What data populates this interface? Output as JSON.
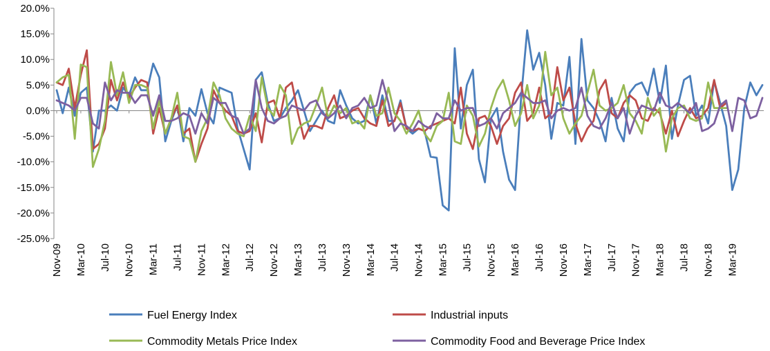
{
  "chart_data": {
    "type": "line",
    "title": "",
    "xlabel": "",
    "ylabel": "",
    "ylim": [
      -25,
      20
    ],
    "y_ticks": [
      "20.0%",
      "15.0%",
      "10.0%",
      "5.0%",
      "0.0%",
      "-5.0%",
      "-10.0%",
      "-15.0%",
      "-20.0%",
      "-25.0%"
    ],
    "y_tick_values": [
      20,
      15,
      10,
      5,
      0,
      -5,
      -10,
      -15,
      -20,
      -25
    ],
    "x_tick_labels": [
      "Nov-09",
      "Mar-10",
      "Jul-10",
      "Nov-10",
      "Mar-11",
      "Jul-11",
      "Nov-11",
      "Mar-12",
      "Jul-12",
      "Nov-12",
      "Mar-13",
      "Jul-13",
      "Nov-13",
      "Mar-14",
      "Jul-14",
      "Nov-14",
      "Mar-15",
      "Jul-15",
      "Nov-15",
      "Mar-16",
      "Jul-16",
      "Nov-16",
      "Mar-17",
      "Jul-17",
      "Nov-17",
      "Mar-18",
      "Jul-18",
      "Nov-18",
      "Mar-19"
    ],
    "grid": false,
    "legend_position": "bottom",
    "series": [
      {
        "name": "Fuel Energy Index",
        "color": "#4a7ebb",
        "values": [
          4.0,
          -0.5,
          4.5,
          -1.0,
          3.5,
          4.5,
          -8.0,
          0.0,
          0.0,
          1.0,
          0.0,
          4.5,
          3.0,
          6.5,
          4.0,
          4.0,
          9.2,
          6.5,
          -6.0,
          -2.0,
          1.0,
          -6.0,
          0.5,
          -1.0,
          4.2,
          -0.5,
          -2.5,
          4.5,
          4.0,
          3.5,
          -3.5,
          -7.5,
          -11.5,
          6.0,
          7.5,
          1.5,
          -2.0,
          -1.5,
          0.5,
          2.0,
          4.0,
          0.0,
          -4.0,
          -2.0,
          0.0,
          -2.0,
          -2.5,
          4.0,
          1.0,
          -1.5,
          -2.5,
          -2.0,
          3.0,
          -2.5,
          3.0,
          -2.0,
          -2.0,
          2.0,
          -3.5,
          -4.5,
          -3.5,
          -4.0,
          -9.0,
          -9.2,
          -18.5,
          -19.5,
          12.2,
          -3.5,
          5.0,
          8.0,
          -9.5,
          -14.0,
          -1.5,
          0.5,
          -8.0,
          -13.5,
          -15.5,
          2.5,
          15.7,
          8.0,
          11.3,
          5.0,
          -5.5,
          1.5,
          1.0,
          10.5,
          -6.5,
          14.0,
          2.0,
          0.5,
          -2.0,
          -6.0,
          2.5,
          -3.5,
          -6.0,
          3.5,
          5.0,
          5.5,
          3.0,
          8.2,
          1.5,
          8.8,
          -5.5,
          1.0,
          6.0,
          6.8,
          -1.0,
          1.0,
          -2.5,
          5.8,
          1.5,
          -3.0,
          -15.5,
          -11.5,
          0.5,
          5.5,
          3.0,
          5.0
        ]
      },
      {
        "name": "Industrial inputs",
        "color": "#be4b48",
        "values": [
          5.5,
          5.0,
          8.2,
          0.5,
          7.0,
          11.8,
          -7.5,
          -6.5,
          -3.5,
          6.0,
          2.0,
          5.5,
          2.5,
          4.5,
          6.0,
          5.5,
          -4.5,
          0.5,
          -4.5,
          -1.5,
          1.0,
          -4.5,
          -3.5,
          -10.0,
          -6.5,
          -3.5,
          4.0,
          1.5,
          0.0,
          -1.0,
          -4.0,
          -4.5,
          -4.0,
          -0.5,
          -6.2,
          1.5,
          2.0,
          -1.5,
          4.5,
          5.5,
          -0.5,
          -5.5,
          -3.0,
          -3.0,
          -3.5,
          0.5,
          3.0,
          -1.5,
          -1.0,
          0.0,
          0.5,
          -1.5,
          -2.5,
          -3.0,
          2.0,
          -3.0,
          -2.0,
          1.5,
          -3.5,
          -4.0,
          -3.5,
          -4.0,
          -3.0,
          -2.5,
          -2.0,
          -1.5,
          -2.5,
          4.5,
          -4.5,
          -7.5,
          -1.5,
          -1.0,
          -3.0,
          -6.5,
          -3.0,
          -1.5,
          3.5,
          5.5,
          -2.0,
          -0.5,
          4.5,
          -1.5,
          -0.5,
          8.5,
          2.0,
          4.5,
          -2.5,
          -6.0,
          -3.5,
          -2.0,
          4.0,
          6.0,
          -0.5,
          -1.5,
          1.5,
          3.0,
          2.0,
          -1.5,
          -2.0,
          0.5,
          -0.5,
          -4.5,
          0.0,
          -5.0,
          -2.0,
          0.5,
          -1.5,
          -1.0,
          0.5,
          6.0,
          0.5,
          1.5
        ]
      },
      {
        "name": "Commodity Metals Price Index",
        "color": "#98b954",
        "values": [
          5.5,
          6.5,
          7.0,
          -5.5,
          9.0,
          8.5,
          -11.0,
          -7.5,
          -2.0,
          9.5,
          3.0,
          7.5,
          1.5,
          5.0,
          5.0,
          4.5,
          -3.5,
          2.0,
          -4.5,
          -1.5,
          3.5,
          -5.0,
          -5.5,
          -10.0,
          -4.0,
          -1.5,
          5.5,
          3.0,
          -1.5,
          -3.5,
          -4.5,
          -5.0,
          -1.0,
          -4.0,
          6.5,
          0.5,
          -1.0,
          5.0,
          3.0,
          -6.5,
          -3.5,
          -2.5,
          -2.0,
          1.0,
          4.5,
          -1.5,
          1.0,
          -0.5,
          0.5,
          -2.5,
          -2.0,
          -3.5,
          3.0,
          -1.0,
          -0.5,
          4.5,
          -0.5,
          -2.0,
          -4.5,
          -2.5,
          0.0,
          -4.5,
          -6.0,
          -3.0,
          -2.0,
          3.5,
          -6.0,
          -6.5,
          1.0,
          -1.0,
          -7.0,
          -4.5,
          0.5,
          4.0,
          6.0,
          2.0,
          -3.0,
          -0.5,
          5.0,
          -1.5,
          1.0,
          11.5,
          3.0,
          4.5,
          -1.5,
          -4.5,
          -2.5,
          -1.0,
          3.5,
          8.0,
          1.0,
          0.0,
          0.5,
          1.5,
          5.0,
          -0.5,
          -2.0,
          -4.5,
          2.5,
          -1.0,
          0.5,
          -8.0,
          -1.5,
          0.5,
          1.0,
          -1.5,
          -2.0,
          -1.5,
          5.5,
          0.5,
          0.5,
          0.5
        ]
      },
      {
        "name": "Commodity Food and Beverage Price Index",
        "color": "#7d60a0",
        "values": [
          2.0,
          1.5,
          1.0,
          0.0,
          2.5,
          2.5,
          -2.5,
          -3.5,
          5.5,
          2.0,
          4.0,
          3.5,
          3.5,
          1.5,
          3.0,
          3.0,
          -1.0,
          3.0,
          -2.0,
          -2.0,
          -1.5,
          -0.5,
          -1.0,
          -4.5,
          -0.5,
          -2.5,
          2.5,
          1.5,
          1.5,
          -1.0,
          -1.5,
          -4.5,
          -3.5,
          6.0,
          0.5,
          -2.0,
          -2.5,
          -1.5,
          -1.0,
          1.0,
          0.5,
          0.0,
          1.5,
          2.0,
          -0.5,
          -1.5,
          -0.5,
          1.0,
          -1.5,
          0.5,
          1.0,
          2.5,
          0.5,
          1.0,
          6.0,
          1.5,
          -4.0,
          -2.5,
          -3.0,
          -4.0,
          -2.0,
          -3.0,
          -3.5,
          -0.5,
          -1.5,
          -1.5,
          2.0,
          0.0,
          0.5,
          0.5,
          -3.0,
          -2.5,
          -1.5,
          -3.5,
          -0.5,
          0.5,
          1.5,
          3.5,
          2.5,
          1.5,
          1.5,
          2.0,
          -1.5,
          0.0,
          0.5,
          0.0,
          0.5,
          4.5,
          -1.0,
          -3.0,
          -3.5,
          -1.5,
          1.5,
          -1.5,
          0.5,
          -4.5,
          -1.0,
          1.0,
          0.5,
          0.0,
          3.5,
          1.0,
          0.5,
          1.5,
          0.5,
          -0.5,
          1.5,
          -4.0,
          -3.5,
          -2.5,
          1.0,
          2.0,
          -4.0,
          2.5,
          2.0,
          -1.5,
          -1.0,
          2.5
        ]
      }
    ]
  }
}
